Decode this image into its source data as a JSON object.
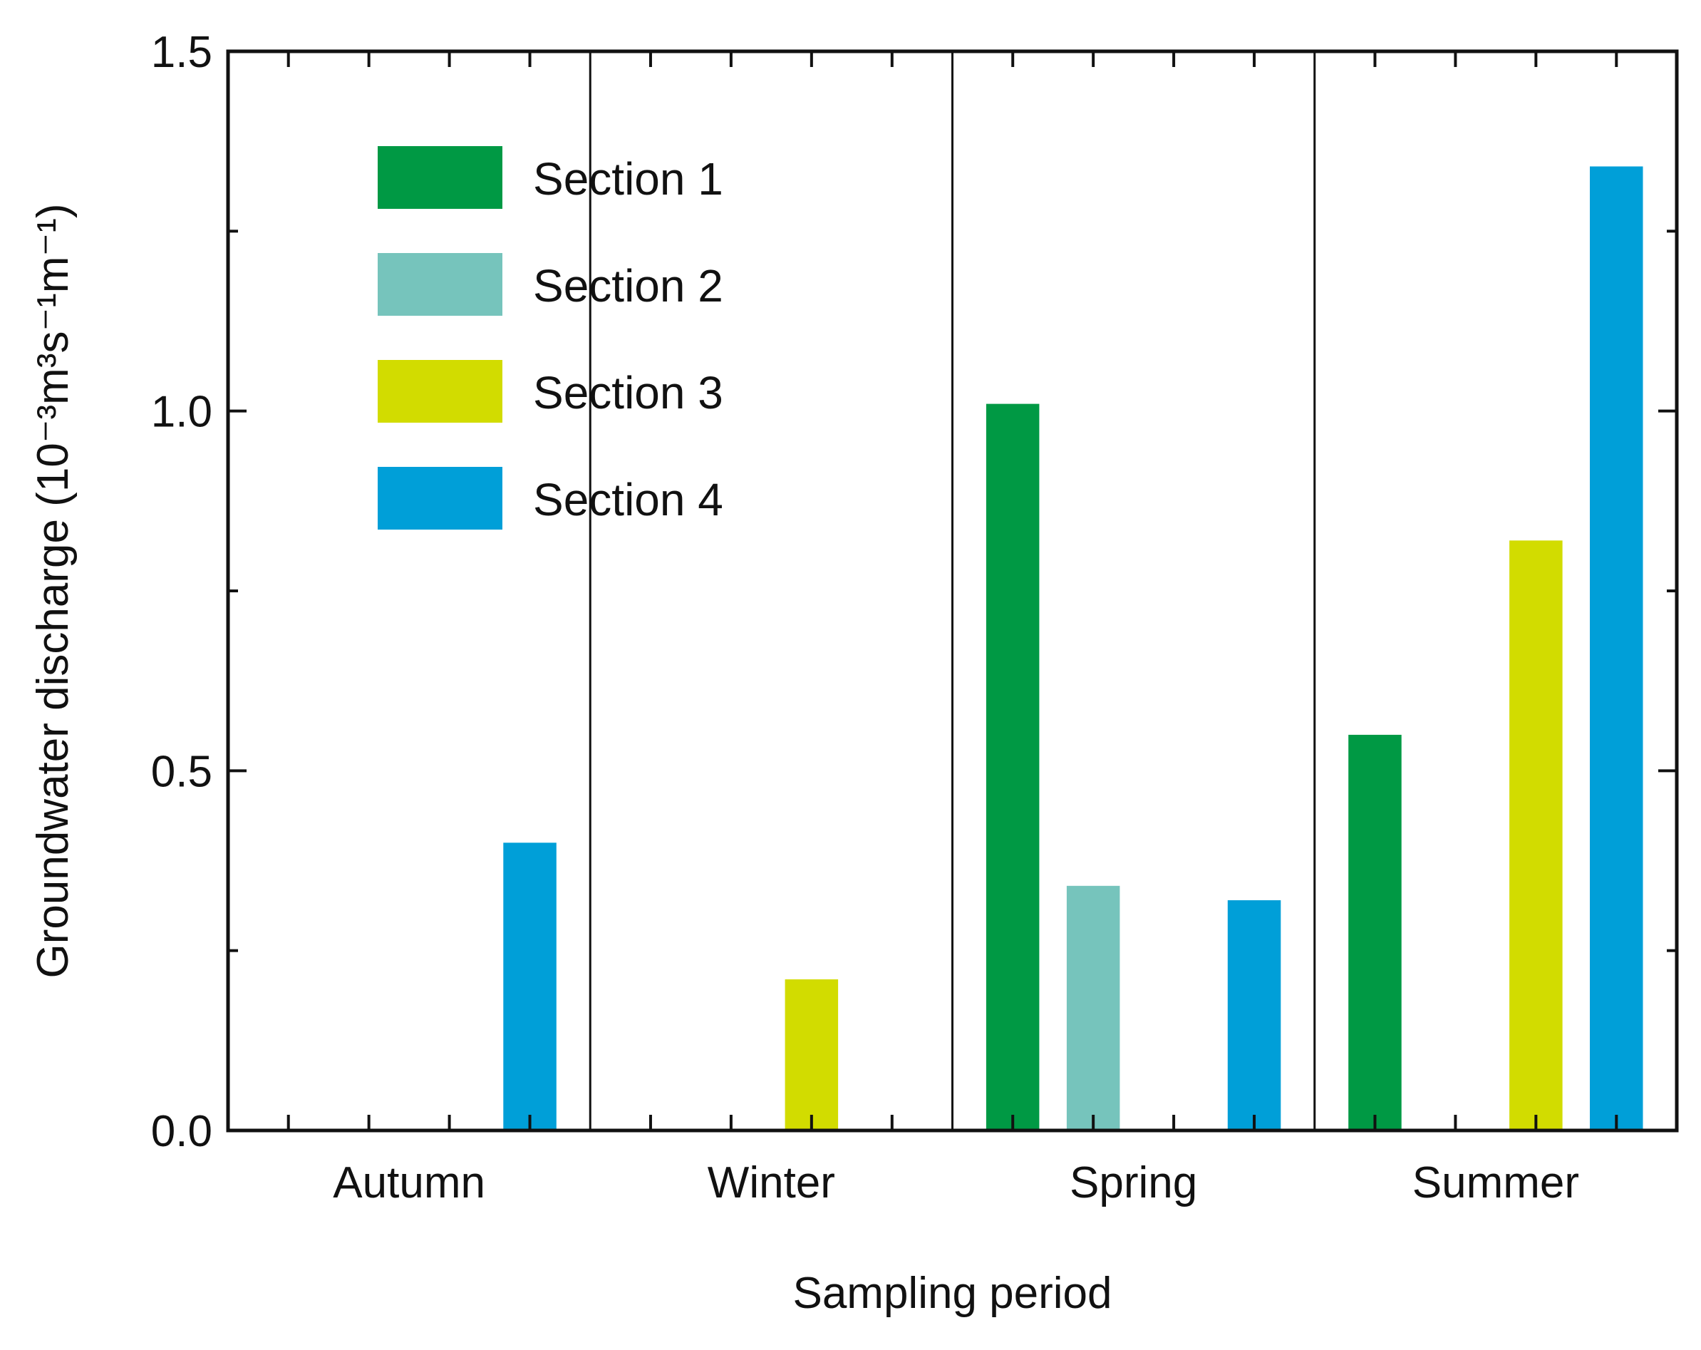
{
  "chart_data": {
    "type": "bar",
    "title": "",
    "xlabel": "Sampling period",
    "ylabel": "Groundwater discharge (10⁻³m³s⁻¹m⁻¹)",
    "ylim": [
      0,
      1.5
    ],
    "yticks": [
      0.0,
      0.5,
      1.0,
      1.5
    ],
    "ytick_labels": [
      "0.0",
      "0.5",
      "1.0",
      "1.5"
    ],
    "categories": [
      "Autumn",
      "Winter",
      "Spring",
      "Summer"
    ],
    "series": [
      {
        "name": "Section 1",
        "color": "#009944",
        "values": [
          0,
          0,
          1.01,
          0.55
        ]
      },
      {
        "name": "Section 2",
        "color": "#76c4bc",
        "values": [
          0,
          0,
          0.34,
          0
        ]
      },
      {
        "name": "Section 3",
        "color": "#d2dc00",
        "values": [
          0,
          0.21,
          0,
          0.82
        ]
      },
      {
        "name": "Section 4",
        "color": "#009fd8",
        "values": [
          0.4,
          0,
          0.32,
          1.34
        ]
      }
    ],
    "grid": false,
    "legend_position": "top-left"
  }
}
